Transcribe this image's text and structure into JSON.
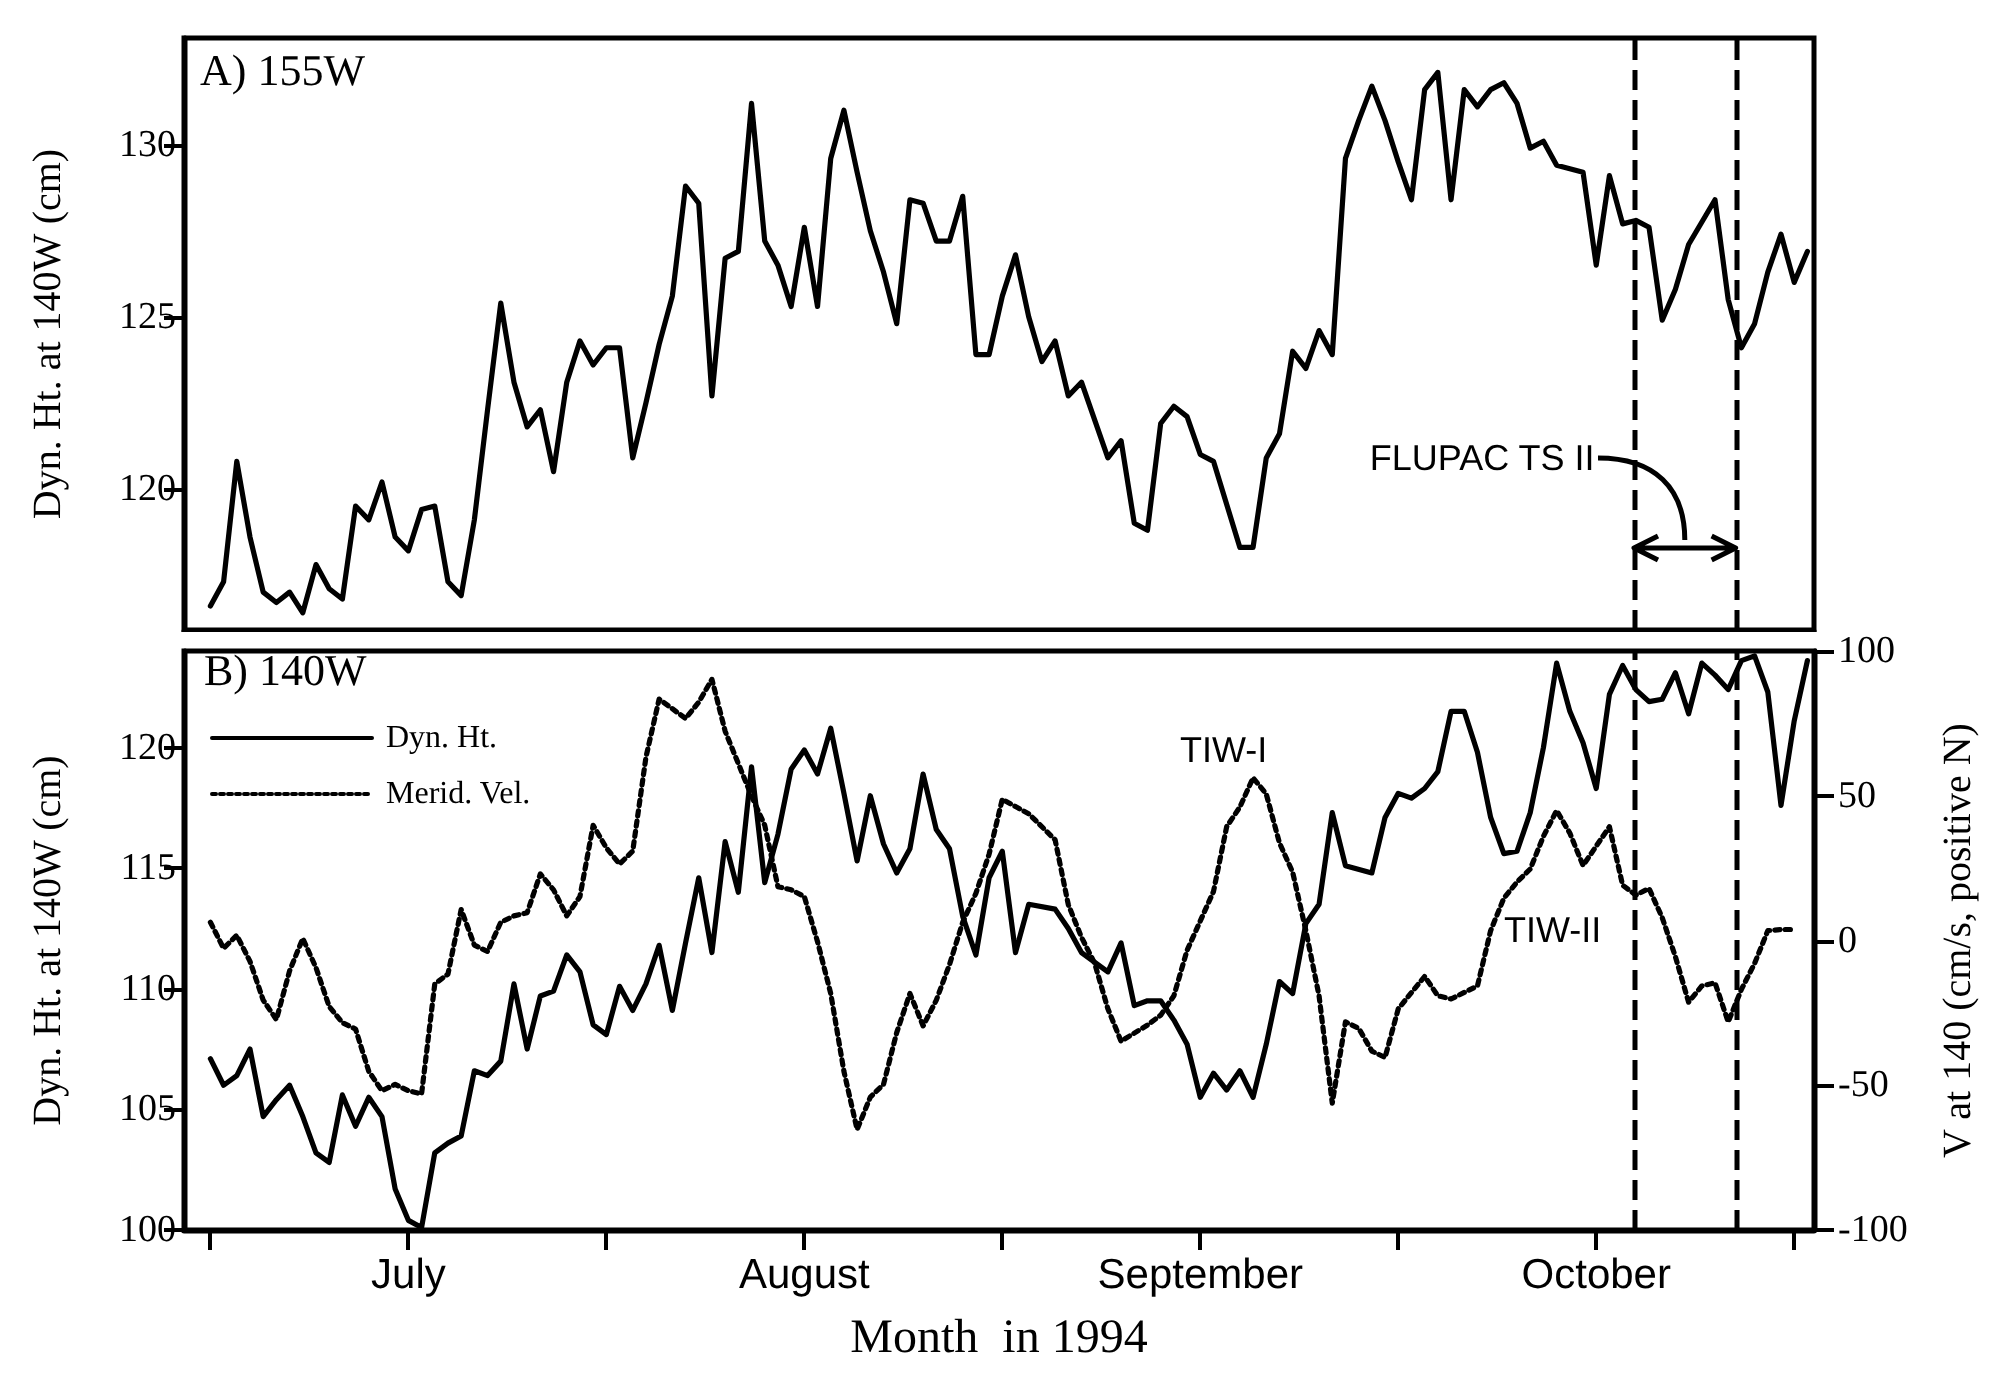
{
  "chart_data": [
    {
      "type": "line",
      "ylabel": "Dyn. Ht. at 140W (cm)",
      "xlim": [
        "1994-06-29",
        "1994-10-30T12:00"
      ],
      "ylim": [
        115.9,
        133.1
      ],
      "yticks": [
        120,
        125,
        130
      ],
      "xticks": [
        {
          "value": "1994-07-01",
          "label": null
        },
        {
          "value": "1994-07-31",
          "label": null
        },
        {
          "value": "1994-08-30",
          "label": null
        },
        {
          "value": "1994-09-29",
          "label": null
        },
        {
          "value": "1994-10-29",
          "label": null
        }
      ],
      "tick_labels": "y",
      "grid": false,
      "legend": false,
      "marker": "none",
      "line_style": "solid",
      "annotations": [
        "A) 155W",
        "FLUPAC TS II"
      ],
      "ref_lines": [
        {
          "axis": "x",
          "value": "1994-10-16T21:36",
          "label": null,
          "color": "#000000",
          "line_style": "dashed"
        },
        {
          "axis": "x",
          "value": "1994-10-24T14:24",
          "label": null,
          "color": "#000000",
          "line_style": "dashed"
        }
      ],
      "series": [
        {
          "color": "#000000",
          "x": [
            "1994-07-01",
            "1994-07-02",
            "1994-07-03",
            "1994-07-04",
            "1994-07-05",
            "1994-07-06",
            "1994-07-07",
            "1994-07-08",
            "1994-07-09",
            "1994-07-10",
            "1994-07-11",
            "1994-07-12",
            "1994-07-13",
            "1994-07-14",
            "1994-07-15",
            "1994-07-16",
            "1994-07-17",
            "1994-07-18",
            "1994-07-19",
            "1994-07-20",
            "1994-07-21",
            "1994-07-22",
            "1994-07-23",
            "1994-07-24",
            "1994-07-25",
            "1994-07-26",
            "1994-07-27",
            "1994-07-28",
            "1994-07-29",
            "1994-07-30",
            "1994-07-31",
            "1994-08-01",
            "1994-08-02",
            "1994-08-03",
            "1994-08-04",
            "1994-08-05",
            "1994-08-06",
            "1994-08-07",
            "1994-08-08",
            "1994-08-09",
            "1994-08-10",
            "1994-08-11",
            "1994-08-12",
            "1994-08-13",
            "1994-08-14",
            "1994-08-15",
            "1994-08-16",
            "1994-08-17",
            "1994-08-18",
            "1994-08-19",
            "1994-08-20",
            "1994-08-21",
            "1994-08-22",
            "1994-08-23",
            "1994-08-24",
            "1994-08-25",
            "1994-08-26",
            "1994-08-27",
            "1994-08-28",
            "1994-08-29",
            "1994-08-30",
            "1994-08-31",
            "1994-09-01",
            "1994-09-02",
            "1994-09-03",
            "1994-09-04",
            "1994-09-05",
            "1994-09-07",
            "1994-09-08",
            "1994-09-09",
            "1994-09-10",
            "1994-09-11",
            "1994-09-12",
            "1994-09-13",
            "1994-09-14",
            "1994-09-15",
            "1994-09-17",
            "1994-09-18",
            "1994-09-19",
            "1994-09-20",
            "1994-09-21",
            "1994-09-22",
            "1994-09-23",
            "1994-09-24",
            "1994-09-25",
            "1994-09-26",
            "1994-09-27",
            "1994-09-28",
            "1994-09-29",
            "1994-09-30",
            "1994-10-01",
            "1994-10-02",
            "1994-10-03",
            "1994-10-04",
            "1994-10-05",
            "1994-10-06",
            "1994-10-07",
            "1994-10-08",
            "1994-10-09",
            "1994-10-10",
            "1994-10-11",
            "1994-10-12",
            "1994-10-13",
            "1994-10-14",
            "1994-10-15",
            "1994-10-16",
            "1994-10-17",
            "1994-10-18",
            "1994-10-19",
            "1994-10-20",
            "1994-10-21",
            "1994-10-23",
            "1994-10-24",
            "1994-10-25",
            "1994-10-26",
            "1994-10-27",
            "1994-10-28",
            "1994-10-29",
            "1994-10-30"
          ],
          "values": [
            116.6,
            117.3,
            120.8,
            118.6,
            117.0,
            116.7,
            117.0,
            116.4,
            117.8,
            117.1,
            116.8,
            119.5,
            119.1,
            120.2,
            118.6,
            118.2,
            119.4,
            119.5,
            117.3,
            116.9,
            119.1,
            122.3,
            125.4,
            123.1,
            121.8,
            122.3,
            120.5,
            123.1,
            124.3,
            123.6,
            124.1,
            124.1,
            120.9,
            122.5,
            124.2,
            125.6,
            128.8,
            128.3,
            122.7,
            126.7,
            126.9,
            131.2,
            127.2,
            126.5,
            125.3,
            127.6,
            125.3,
            129.6,
            131.0,
            129.2,
            127.5,
            126.3,
            124.8,
            128.4,
            128.3,
            127.2,
            127.2,
            128.5,
            123.9,
            123.9,
            125.6,
            126.8,
            125.0,
            123.7,
            124.3,
            122.7,
            123.1,
            120.9,
            121.4,
            119.0,
            118.8,
            121.9,
            122.4,
            122.1,
            121.0,
            120.8,
            118.3,
            118.3,
            120.9,
            121.6,
            124.0,
            123.5,
            124.6,
            123.9,
            129.6,
            130.7,
            131.7,
            130.7,
            129.5,
            128.4,
            131.6,
            132.1,
            128.4,
            131.6,
            131.1,
            131.6,
            131.8,
            131.2,
            129.9,
            130.1,
            129.4,
            129.3,
            129.2,
            126.5,
            129.1,
            127.7,
            127.8,
            127.6,
            124.9,
            125.8,
            127.1,
            128.4,
            125.5,
            124.1,
            124.8,
            126.3,
            127.4,
            126.0,
            126.9
          ]
        }
      ]
    },
    {
      "type": "line",
      "xlabel": "Month  in 1994",
      "ylabel": "Dyn. Ht. at 140W (cm)",
      "y2label": "V at 140 (cm/s, positive N)",
      "xlim": [
        "1994-06-29",
        "1994-10-30T12:00"
      ],
      "ylim": [
        100,
        124
      ],
      "yticks": [
        100,
        105,
        110,
        115,
        120
      ],
      "y2lim": [
        -100,
        100
      ],
      "y2ticks": [
        -100,
        -50,
        0,
        50,
        100
      ],
      "xticks": [
        {
          "value": "1994-07-01",
          "label": null
        },
        {
          "value": "1994-07-16",
          "label": "July"
        },
        {
          "value": "1994-07-31",
          "label": null
        },
        {
          "value": "1994-08-15",
          "label": "August"
        },
        {
          "value": "1994-08-30",
          "label": null
        },
        {
          "value": "1994-09-14",
          "label": "September"
        },
        {
          "value": "1994-09-29",
          "label": null
        },
        {
          "value": "1994-10-14",
          "label": "October"
        },
        {
          "value": "1994-10-29",
          "label": null
        }
      ],
      "grid": false,
      "legend": "top left",
      "marker": "none",
      "annotations": [
        "B) 140W",
        "TIW-I",
        "TIW-II"
      ],
      "ref_lines": [
        {
          "axis": "x",
          "value": "1994-10-16T21:36",
          "label": null,
          "color": "#000000",
          "line_style": "dashed"
        },
        {
          "axis": "x",
          "value": "1994-10-24T14:24",
          "label": null,
          "color": "#000000",
          "line_style": "dashed"
        }
      ],
      "series": [
        {
          "name": "Dyn. Ht.",
          "color": "#000000",
          "line_style": "solid",
          "x": [
            "1994-07-01",
            "1994-07-02",
            "1994-07-03",
            "1994-07-04",
            "1994-07-05",
            "1994-07-06",
            "1994-07-07",
            "1994-07-08",
            "1994-07-09",
            "1994-07-10",
            "1994-07-11",
            "1994-07-12",
            "1994-07-13",
            "1994-07-14",
            "1994-07-15",
            "1994-07-16",
            "1994-07-17",
            "1994-07-18",
            "1994-07-19",
            "1994-07-20",
            "1994-07-21",
            "1994-07-22",
            "1994-07-23",
            "1994-07-24",
            "1994-07-25",
            "1994-07-26",
            "1994-07-27",
            "1994-07-28",
            "1994-07-29",
            "1994-07-30",
            "1994-07-31",
            "1994-08-01",
            "1994-08-02",
            "1994-08-03",
            "1994-08-04",
            "1994-08-05",
            "1994-08-06",
            "1994-08-07",
            "1994-08-08",
            "1994-08-09",
            "1994-08-10",
            "1994-08-11",
            "1994-08-12",
            "1994-08-13",
            "1994-08-14",
            "1994-08-15",
            "1994-08-16",
            "1994-08-17",
            "1994-08-18",
            "1994-08-19",
            "1994-08-20",
            "1994-08-21",
            "1994-08-22",
            "1994-08-23",
            "1994-08-24",
            "1994-08-25",
            "1994-08-26",
            "1994-08-27",
            "1994-08-28",
            "1994-08-29",
            "1994-08-30",
            "1994-08-31",
            "1994-09-01",
            "1994-09-03",
            "1994-09-04",
            "1994-09-05",
            "1994-09-07",
            "1994-09-08",
            "1994-09-09",
            "1994-09-10",
            "1994-09-11",
            "1994-09-12",
            "1994-09-13",
            "1994-09-14",
            "1994-09-15",
            "1994-09-16",
            "1994-09-17",
            "1994-09-18",
            "1994-09-19",
            "1994-09-20",
            "1994-09-21",
            "1994-09-22",
            "1994-09-23",
            "1994-09-24",
            "1994-09-25",
            "1994-09-27",
            "1994-09-28",
            "1994-09-29",
            "1994-09-30",
            "1994-10-01",
            "1994-10-02",
            "1994-10-03",
            "1994-10-04",
            "1994-10-05",
            "1994-10-06",
            "1994-10-07",
            "1994-10-08",
            "1994-10-09",
            "1994-10-10",
            "1994-10-11",
            "1994-10-12",
            "1994-10-13",
            "1994-10-14",
            "1994-10-15",
            "1994-10-16",
            "1994-10-17",
            "1994-10-18",
            "1994-10-19",
            "1994-10-20",
            "1994-10-21",
            "1994-10-22",
            "1994-10-23",
            "1994-10-24",
            "1994-10-25",
            "1994-10-26",
            "1994-10-27",
            "1994-10-28",
            "1994-10-29",
            "1994-10-30"
          ],
          "values": [
            107.1,
            106.0,
            106.4,
            107.5,
            104.7,
            105.4,
            106.0,
            104.7,
            103.2,
            102.8,
            105.6,
            104.3,
            105.5,
            104.7,
            101.7,
            100.4,
            100.1,
            103.2,
            103.6,
            103.9,
            106.6,
            106.4,
            107.0,
            110.2,
            107.5,
            109.7,
            109.9,
            111.4,
            110.7,
            108.5,
            108.1,
            110.1,
            109.1,
            110.2,
            111.8,
            109.1,
            111.9,
            114.6,
            111.5,
            116.1,
            114.0,
            119.2,
            114.4,
            116.4,
            119.1,
            119.9,
            118.9,
            120.8,
            118.1,
            115.3,
            118.0,
            116.0,
            114.8,
            115.8,
            118.9,
            116.6,
            115.8,
            113.0,
            111.4,
            114.6,
            115.7,
            111.5,
            113.5,
            113.3,
            112.5,
            111.5,
            110.7,
            111.9,
            109.3,
            109.5,
            109.5,
            108.7,
            107.7,
            105.5,
            106.5,
            105.8,
            106.6,
            105.5,
            107.7,
            110.3,
            109.8,
            112.7,
            113.5,
            117.3,
            115.1,
            114.8,
            117.1,
            118.1,
            117.9,
            118.3,
            119.0,
            121.5,
            121.5,
            119.8,
            117.1,
            115.6,
            115.7,
            117.3,
            120.0,
            123.5,
            121.5,
            120.2,
            118.3,
            122.2,
            123.4,
            122.4,
            121.9,
            122.0,
            123.1,
            121.4,
            123.5,
            123.0,
            122.4,
            123.6,
            123.8,
            122.3,
            117.6,
            121.1,
            123.6
          ]
        },
        {
          "name": "Merid. Vel.",
          "color": "#000000",
          "line_style": "dotted",
          "axis": "y2",
          "x": [
            "1994-07-01",
            "1994-07-02",
            "1994-07-03",
            "1994-07-04",
            "1994-07-05",
            "1994-07-06",
            "1994-07-07",
            "1994-07-08",
            "1994-07-09",
            "1994-07-10",
            "1994-07-11",
            "1994-07-12",
            "1994-07-13",
            "1994-07-14",
            "1994-07-15",
            "1994-07-16",
            "1994-07-17",
            "1994-07-18",
            "1994-07-19",
            "1994-07-20",
            "1994-07-21",
            "1994-07-22",
            "1994-07-23",
            "1994-07-24",
            "1994-07-25",
            "1994-07-26",
            "1994-07-27",
            "1994-07-28",
            "1994-07-29",
            "1994-07-30",
            "1994-07-31",
            "1994-08-01",
            "1994-08-02",
            "1994-08-03",
            "1994-08-04",
            "1994-08-06",
            "1994-08-07",
            "1994-08-08",
            "1994-08-09",
            "1994-08-10",
            "1994-08-11",
            "1994-08-12",
            "1994-08-13",
            "1994-08-14",
            "1994-08-15",
            "1994-08-16",
            "1994-08-17",
            "1994-08-18",
            "1994-08-19",
            "1994-08-20",
            "1994-08-21",
            "1994-08-22",
            "1994-08-23",
            "1994-08-24",
            "1994-08-25",
            "1994-08-26",
            "1994-08-27",
            "1994-08-28",
            "1994-08-29",
            "1994-08-30",
            "1994-09-01",
            "1994-09-03",
            "1994-09-04",
            "1994-09-05",
            "1994-09-06",
            "1994-09-07",
            "1994-09-08",
            "1994-09-10",
            "1994-09-11",
            "1994-09-12",
            "1994-09-13",
            "1994-09-15",
            "1994-09-16",
            "1994-09-17",
            "1994-09-18",
            "1994-09-19",
            "1994-09-20",
            "1994-09-21",
            "1994-09-22",
            "1994-09-23",
            "1994-09-24",
            "1994-09-25",
            "1994-09-26",
            "1994-09-27",
            "1994-09-28",
            "1994-09-29",
            "1994-10-01",
            "1994-10-02",
            "1994-10-03",
            "1994-10-05",
            "1994-10-06",
            "1994-10-07",
            "1994-10-08",
            "1994-10-09",
            "1994-10-10",
            "1994-10-11",
            "1994-10-12",
            "1994-10-13",
            "1994-10-14",
            "1994-10-15",
            "1994-10-16",
            "1994-10-17",
            "1994-10-18",
            "1994-10-19",
            "1994-10-20",
            "1994-10-21",
            "1994-10-22",
            "1994-10-23",
            "1994-10-24",
            "1994-10-25",
            "1994-10-26",
            "1994-10-27",
            "1994-10-28",
            "1994-10-29"
          ],
          "values": [
            6.3,
            -2.7,
            1.8,
            -7.2,
            -20.6,
            -27.3,
            -10.5,
            0.7,
            -9.4,
            -22.8,
            -28.4,
            -30.6,
            -45.2,
            -51.9,
            -49.7,
            -51.9,
            -53.0,
            -15.0,
            -11.6,
            10.7,
            -1.6,
            -3.8,
            6.3,
            8.5,
            9.6,
            23.0,
            17.5,
            8.5,
            15.2,
            39.8,
            32.0,
            26.4,
            30.9,
            63.3,
            83.4,
            76.7,
            82.3,
            90.2,
            72.3,
            61.1,
            49.9,
            39.8,
            18.6,
            17.5,
            15.2,
            -0.4,
            -18.3,
            -45.2,
            -65.3,
            -54.1,
            -49.7,
            -31.8,
            -18.3,
            -29.5,
            -20.6,
            -8.3,
            6.3,
            16.3,
            29.8,
            48.8,
            43.8,
            34.8,
            12.4,
            1.1,
            -7.9,
            -23.6,
            -34.8,
            -29.2,
            -25.8,
            -19.1,
            -3.4,
            16.9,
            39.3,
            46.1,
            56.2,
            50.6,
            33.7,
            23.6,
            3.4,
            -19.1,
            -56.2,
            -28.1,
            -30.3,
            -38.2,
            -40.4,
            -23.6,
            -12.4,
            -19.1,
            -20.2,
            -15.7,
            3.4,
            14.6,
            20.2,
            24.7,
            36.0,
            44.9,
            37.1,
            25.9,
            32.6,
            39.3,
            19.1,
            15.7,
            18.0,
            7.9,
            -5.6,
            -21.3,
            -15.7,
            -14.6,
            -28.1,
            -16.9,
            -7.9,
            3.4,
            3.8,
            3.8
          ]
        }
      ]
    }
  ]
}
